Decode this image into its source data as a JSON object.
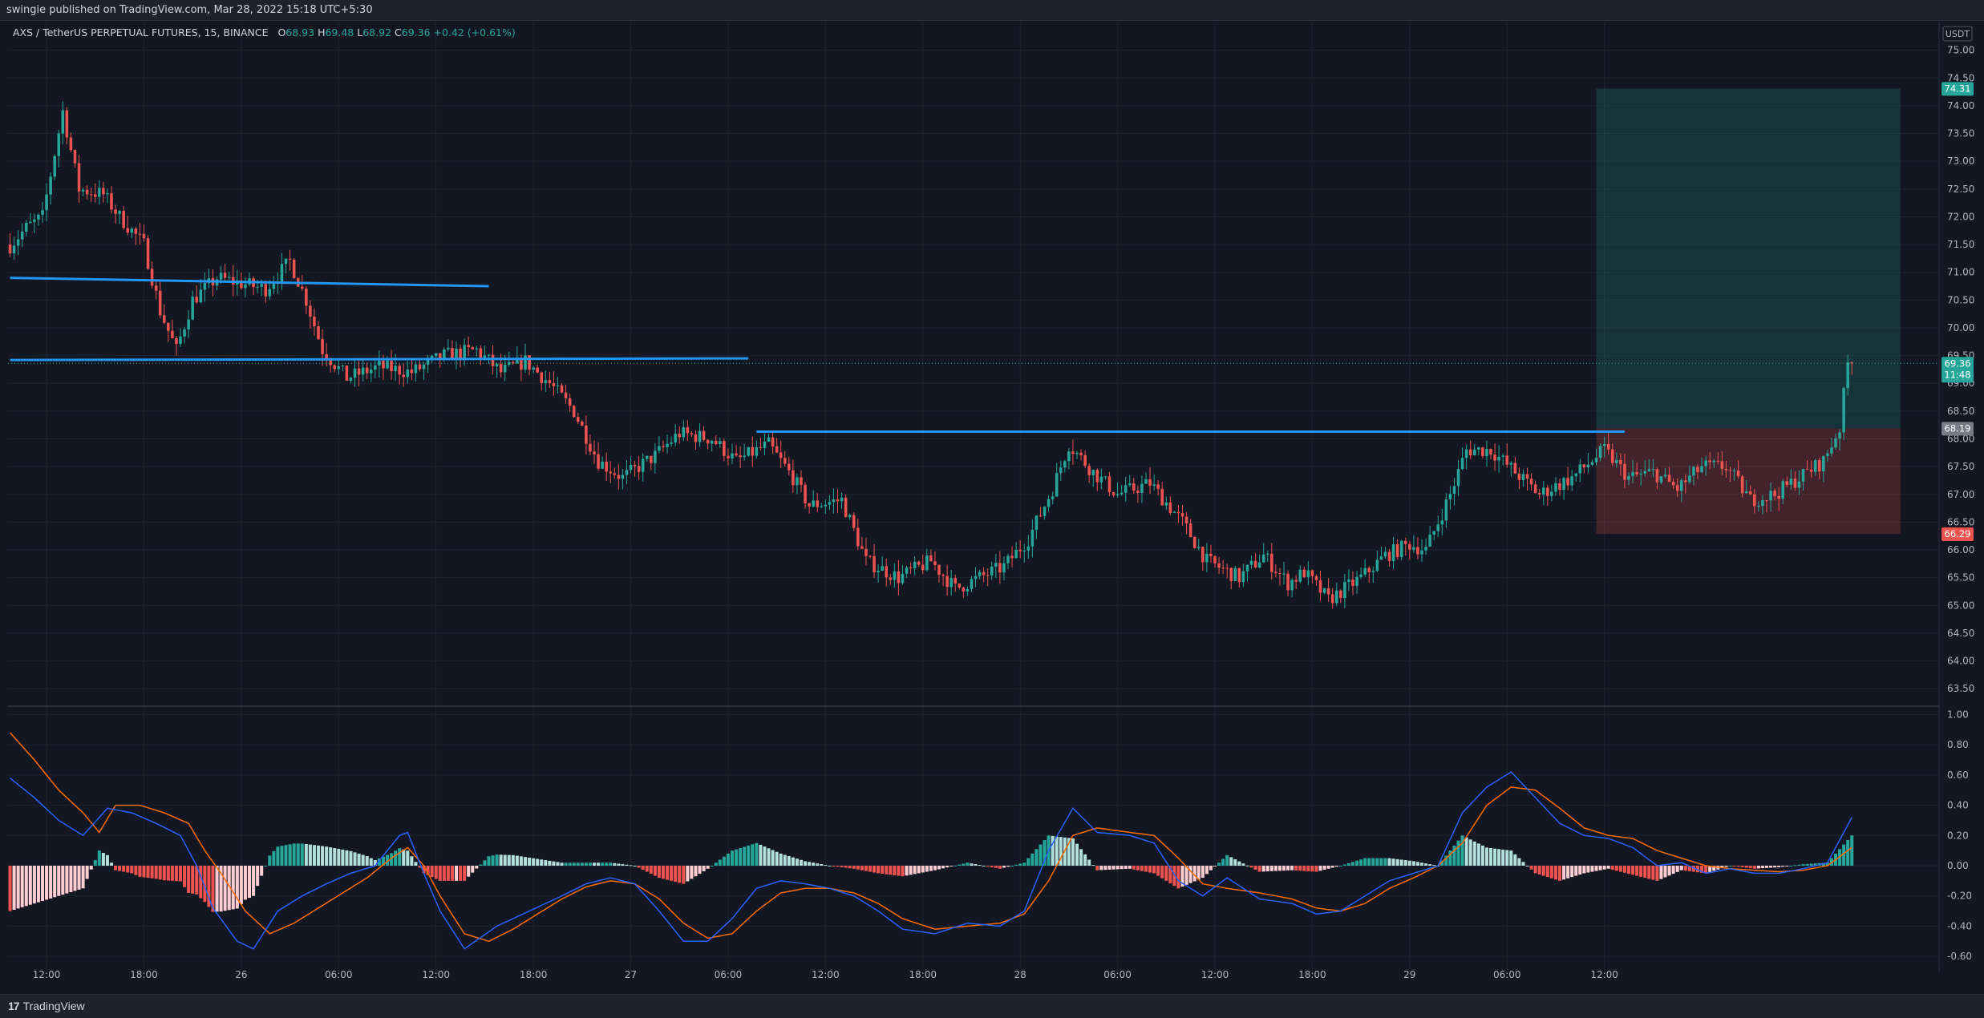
{
  "header": {
    "published_text": "swingie published on TradingView.com, Mar 28, 2022 15:18 UTC+5:30"
  },
  "legend": {
    "symbol": "AXS / TetherUS PERPETUAL FUTURES, 15, BINANCE",
    "o_label": "O",
    "o": "68.93",
    "h_label": "H",
    "h": "69.48",
    "l_label": "L",
    "l": "68.92",
    "c_label": "C",
    "c": "69.36",
    "change": "+0.42 (+0.61%)"
  },
  "footer": {
    "brand": "TradingView",
    "logo_glyph": "17"
  },
  "colors": {
    "background": "#131722",
    "grid": "#1e222d",
    "up": "#26a69a",
    "down": "#ef5350",
    "trendline": "#2196f3",
    "macd": "#2962ff",
    "signal": "#ff6d00",
    "hist_up_strong": "#26a69a",
    "hist_up_weak": "#b2dfdb",
    "hist_down_strong": "#ef5350",
    "hist_down_weak": "#ffcdd2",
    "profit_zone": "#26a69a",
    "loss_zone": "#ef5350"
  },
  "chart_data": [
    {
      "type": "candlestick",
      "symbol": "AXS / TetherUS PERPETUAL FUTURES",
      "interval": "15",
      "exchange": "BINANCE",
      "currency": "USDT",
      "ylim": [
        63.2,
        75.5
      ],
      "y_ticks": [
        63.5,
        64.0,
        64.5,
        65.0,
        65.5,
        66.0,
        66.5,
        67.0,
        67.5,
        68.0,
        68.5,
        69.0,
        69.5,
        70.0,
        70.5,
        71.0,
        71.5,
        72.0,
        72.5,
        73.0,
        73.5,
        74.0,
        74.5,
        75.0
      ],
      "x_ticks": [
        "12:00",
        "18:00",
        "26",
        "06:00",
        "12:00",
        "18:00",
        "27",
        "06:00",
        "12:00",
        "18:00",
        "28",
        "06:00",
        "12:00",
        "18:00",
        "29",
        "06:00",
        "12:00"
      ],
      "path_points": [
        [
          0,
          71.4
        ],
        [
          5,
          71.8
        ],
        [
          9,
          72.0
        ],
        [
          14,
          73.9
        ],
        [
          18,
          72.5
        ],
        [
          24,
          72.4
        ],
        [
          28,
          72.0
        ],
        [
          34,
          71.5
        ],
        [
          38,
          70.3
        ],
        [
          42,
          69.6
        ],
        [
          46,
          70.5
        ],
        [
          52,
          70.9
        ],
        [
          58,
          70.8
        ],
        [
          64,
          70.7
        ],
        [
          70,
          71.2
        ],
        [
          74,
          70.5
        ],
        [
          78,
          69.6
        ],
        [
          84,
          69.1
        ],
        [
          92,
          69.3
        ],
        [
          100,
          69.2
        ],
        [
          108,
          69.5
        ],
        [
          116,
          69.6
        ],
        [
          122,
          69.2
        ],
        [
          128,
          69.4
        ],
        [
          134,
          69.0
        ],
        [
          140,
          68.5
        ],
        [
          146,
          67.6
        ],
        [
          152,
          67.3
        ],
        [
          160,
          67.7
        ],
        [
          166,
          68.1
        ],
        [
          174,
          68.0
        ],
        [
          180,
          67.6
        ],
        [
          188,
          67.9
        ],
        [
          194,
          67.3
        ],
        [
          198,
          66.8
        ],
        [
          206,
          66.9
        ],
        [
          212,
          65.8
        ],
        [
          220,
          65.5
        ],
        [
          228,
          65.8
        ],
        [
          234,
          65.3
        ],
        [
          240,
          65.5
        ],
        [
          246,
          65.7
        ],
        [
          252,
          66.2
        ],
        [
          258,
          67.1
        ],
        [
          262,
          67.9
        ],
        [
          268,
          67.4
        ],
        [
          274,
          67.0
        ],
        [
          282,
          67.2
        ],
        [
          290,
          66.5
        ],
        [
          296,
          65.8
        ],
        [
          304,
          65.5
        ],
        [
          310,
          65.9
        ],
        [
          316,
          65.4
        ],
        [
          320,
          65.6
        ],
        [
          326,
          65.1
        ],
        [
          334,
          65.5
        ],
        [
          340,
          65.9
        ],
        [
          346,
          66.1
        ],
        [
          350,
          66.0
        ],
        [
          356,
          67.0
        ],
        [
          360,
          67.8
        ],
        [
          366,
          67.8
        ],
        [
          372,
          67.4
        ],
        [
          378,
          67.0
        ],
        [
          386,
          67.3
        ],
        [
          394,
          67.8
        ],
        [
          400,
          67.3
        ],
        [
          406,
          67.4
        ],
        [
          412,
          67.1
        ],
        [
          418,
          67.5
        ],
        [
          424,
          67.5
        ],
        [
          430,
          66.9
        ],
        [
          436,
          67.0
        ],
        [
          444,
          67.4
        ],
        [
          448,
          67.6
        ],
        [
          452,
          68.2
        ],
        [
          454,
          69.36
        ]
      ],
      "last_price": "69.36",
      "countdown": "11:48",
      "lines": [
        {
          "name": "trendline-upper",
          "from": [
            0,
            70.9
          ],
          "to": [
            118,
            70.75
          ]
        },
        {
          "name": "horizontal-resistance",
          "from": [
            0,
            69.42
          ],
          "to": [
            182,
            69.45
          ]
        },
        {
          "name": "breakout-level",
          "from": [
            184,
            68.13
          ],
          "to": [
            398,
            68.13
          ]
        }
      ],
      "position": {
        "type": "long",
        "target": "74.31",
        "entry": "68.19",
        "stop": "66.29",
        "target_value": 74.31,
        "entry_value": 68.19,
        "stop_value": 66.29,
        "x_start": 391,
        "x_end": 466
      }
    },
    {
      "type": "macd",
      "ylim": [
        -0.7,
        1.05
      ],
      "y_ticks": [
        1.0,
        0.8,
        0.6,
        0.4,
        0.2,
        0.0,
        -0.2,
        -0.4,
        -0.6
      ],
      "macd_points": [
        [
          0,
          0.58
        ],
        [
          6,
          0.45
        ],
        [
          12,
          0.3
        ],
        [
          18,
          0.2
        ],
        [
          24,
          0.38
        ],
        [
          30,
          0.35
        ],
        [
          36,
          0.28
        ],
        [
          42,
          0.2
        ],
        [
          46,
          0.0
        ],
        [
          50,
          -0.28
        ],
        [
          56,
          -0.5
        ],
        [
          60,
          -0.55
        ],
        [
          66,
          -0.3
        ],
        [
          72,
          -0.2
        ],
        [
          78,
          -0.12
        ],
        [
          84,
          -0.05
        ],
        [
          90,
          -0.0
        ],
        [
          96,
          0.2
        ],
        [
          98,
          0.22
        ],
        [
          102,
          -0.05
        ],
        [
          106,
          -0.3
        ],
        [
          112,
          -0.55
        ],
        [
          120,
          -0.4
        ],
        [
          128,
          -0.3
        ],
        [
          136,
          -0.2
        ],
        [
          142,
          -0.12
        ],
        [
          148,
          -0.08
        ],
        [
          154,
          -0.12
        ],
        [
          160,
          -0.3
        ],
        [
          166,
          -0.5
        ],
        [
          172,
          -0.5
        ],
        [
          178,
          -0.35
        ],
        [
          184,
          -0.15
        ],
        [
          190,
          -0.1
        ],
        [
          196,
          -0.12
        ],
        [
          202,
          -0.15
        ],
        [
          208,
          -0.2
        ],
        [
          214,
          -0.3
        ],
        [
          220,
          -0.42
        ],
        [
          228,
          -0.45
        ],
        [
          236,
          -0.38
        ],
        [
          244,
          -0.4
        ],
        [
          250,
          -0.3
        ],
        [
          256,
          0.1
        ],
        [
          262,
          0.38
        ],
        [
          268,
          0.22
        ],
        [
          276,
          0.2
        ],
        [
          282,
          0.15
        ],
        [
          288,
          -0.1
        ],
        [
          294,
          -0.2
        ],
        [
          300,
          -0.08
        ],
        [
          308,
          -0.22
        ],
        [
          316,
          -0.25
        ],
        [
          322,
          -0.32
        ],
        [
          328,
          -0.3
        ],
        [
          334,
          -0.2
        ],
        [
          340,
          -0.1
        ],
        [
          346,
          -0.05
        ],
        [
          352,
          -0.0
        ],
        [
          358,
          0.35
        ],
        [
          364,
          0.52
        ],
        [
          370,
          0.62
        ],
        [
          376,
          0.45
        ],
        [
          382,
          0.28
        ],
        [
          388,
          0.2
        ],
        [
          394,
          0.18
        ],
        [
          400,
          0.12
        ],
        [
          406,
          0.0
        ],
        [
          412,
          0.02
        ],
        [
          418,
          -0.05
        ],
        [
          424,
          -0.02
        ],
        [
          430,
          -0.05
        ],
        [
          436,
          -0.05
        ],
        [
          442,
          -0.02
        ],
        [
          448,
          0.02
        ],
        [
          452,
          0.22
        ],
        [
          454,
          0.32
        ]
      ],
      "signal_points": [
        [
          0,
          0.88
        ],
        [
          6,
          0.7
        ],
        [
          12,
          0.5
        ],
        [
          18,
          0.35
        ],
        [
          22,
          0.22
        ],
        [
          26,
          0.4
        ],
        [
          32,
          0.4
        ],
        [
          38,
          0.35
        ],
        [
          44,
          0.28
        ],
        [
          48,
          0.1
        ],
        [
          52,
          -0.05
        ],
        [
          58,
          -0.3
        ],
        [
          64,
          -0.45
        ],
        [
          70,
          -0.38
        ],
        [
          76,
          -0.28
        ],
        [
          82,
          -0.18
        ],
        [
          88,
          -0.08
        ],
        [
          94,
          0.05
        ],
        [
          98,
          0.12
        ],
        [
          102,
          0.0
        ],
        [
          106,
          -0.2
        ],
        [
          112,
          -0.45
        ],
        [
          118,
          -0.5
        ],
        [
          124,
          -0.42
        ],
        [
          130,
          -0.32
        ],
        [
          136,
          -0.22
        ],
        [
          142,
          -0.14
        ],
        [
          148,
          -0.1
        ],
        [
          154,
          -0.12
        ],
        [
          160,
          -0.22
        ],
        [
          166,
          -0.38
        ],
        [
          172,
          -0.48
        ],
        [
          178,
          -0.45
        ],
        [
          184,
          -0.3
        ],
        [
          190,
          -0.18
        ],
        [
          196,
          -0.15
        ],
        [
          202,
          -0.15
        ],
        [
          208,
          -0.18
        ],
        [
          214,
          -0.25
        ],
        [
          220,
          -0.35
        ],
        [
          228,
          -0.42
        ],
        [
          236,
          -0.4
        ],
        [
          244,
          -0.38
        ],
        [
          250,
          -0.32
        ],
        [
          256,
          -0.1
        ],
        [
          262,
          0.2
        ],
        [
          268,
          0.25
        ],
        [
          276,
          0.22
        ],
        [
          282,
          0.2
        ],
        [
          288,
          0.05
        ],
        [
          294,
          -0.12
        ],
        [
          300,
          -0.15
        ],
        [
          308,
          -0.18
        ],
        [
          316,
          -0.22
        ],
        [
          322,
          -0.28
        ],
        [
          328,
          -0.3
        ],
        [
          334,
          -0.25
        ],
        [
          340,
          -0.15
        ],
        [
          346,
          -0.08
        ],
        [
          352,
          0.0
        ],
        [
          358,
          0.15
        ],
        [
          364,
          0.4
        ],
        [
          370,
          0.52
        ],
        [
          376,
          0.5
        ],
        [
          382,
          0.38
        ],
        [
          388,
          0.25
        ],
        [
          394,
          0.2
        ],
        [
          400,
          0.18
        ],
        [
          406,
          0.1
        ],
        [
          412,
          0.05
        ],
        [
          418,
          -0.0
        ],
        [
          424,
          -0.02
        ],
        [
          430,
          -0.03
        ],
        [
          436,
          -0.04
        ],
        [
          442,
          -0.03
        ],
        [
          448,
          0.0
        ],
        [
          452,
          0.08
        ],
        [
          454,
          0.12
        ]
      ]
    }
  ]
}
